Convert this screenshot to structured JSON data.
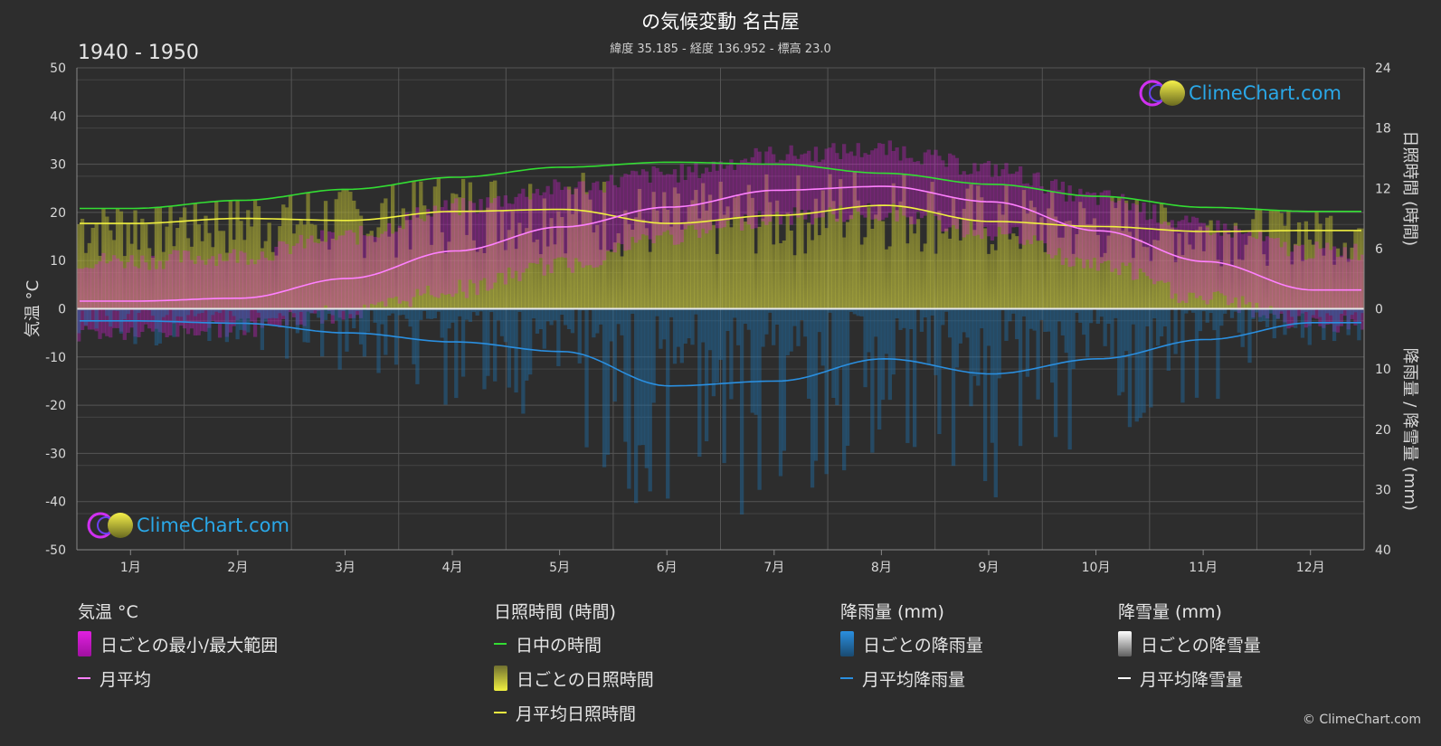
{
  "header": {
    "title": "の気候変動 名古屋",
    "subtitle": "緯度 35.185 - 経度 136.952 - 標高 23.0",
    "period": "1940 - 1950"
  },
  "brand": {
    "logo_text": "ClimeChart.com",
    "copyright": "© ClimeChart.com"
  },
  "colors": {
    "background": "#2d2d2d",
    "daylight": "#33dd33",
    "sunshine_avg": "#f0f040",
    "temp_avg": "#ff80ff",
    "rain_avg": "#2a8fe0",
    "temp_range": "#e020e0",
    "sunshine_bar": "#b9b93a",
    "rain_bar": "#1f6fa8",
    "logo": "#2aa8e8"
  },
  "chart_data": {
    "type": "line",
    "x_label_suffix": "月",
    "categories": [
      "1月",
      "2月",
      "3月",
      "4月",
      "5月",
      "6月",
      "7月",
      "8月",
      "9月",
      "10月",
      "11月",
      "12月"
    ],
    "axes": {
      "left": {
        "title": "気温 °C",
        "min": -50,
        "max": 50,
        "ticks": [
          50,
          40,
          30,
          20,
          10,
          0,
          -10,
          -20,
          -30,
          -40,
          -50
        ]
      },
      "right_top": {
        "title": "日照時間 (時間)",
        "min": 0,
        "max": 24,
        "ticks": [
          24,
          18,
          12,
          6,
          0
        ]
      },
      "right_bottom": {
        "title": "降雨量 / 降雪量 (mm)",
        "min": 0,
        "max": 40,
        "ticks": [
          10,
          20,
          30,
          40
        ]
      }
    },
    "series": [
      {
        "name": "日中の時間",
        "axis": "hours",
        "values": [
          10.0,
          10.8,
          11.9,
          13.1,
          14.1,
          14.6,
          14.4,
          13.5,
          12.4,
          11.2,
          10.1,
          9.7
        ]
      },
      {
        "name": "月平均日照時間",
        "axis": "hours",
        "values": [
          8.5,
          9.0,
          8.8,
          9.7,
          9.9,
          8.5,
          9.3,
          10.3,
          8.7,
          8.2,
          7.7,
          7.8
        ]
      },
      {
        "name": "月平均",
        "axis": "temp",
        "values": [
          1.6,
          2.2,
          6.3,
          12.0,
          17.0,
          21.1,
          24.6,
          25.4,
          22.2,
          16.2,
          9.8,
          3.9
        ]
      },
      {
        "name": "月平均降雨量",
        "axis": "rain_mm",
        "values": [
          2.0,
          2.4,
          4.0,
          5.5,
          7.1,
          12.8,
          12.0,
          8.3,
          10.8,
          8.3,
          5.1,
          2.3
        ]
      },
      {
        "name": "月平均降雪量",
        "axis": "rain_mm",
        "values": [
          0,
          0,
          0,
          0,
          0,
          0,
          0,
          0,
          0,
          0,
          0,
          0
        ]
      }
    ],
    "daily_temp_range": {
      "min": [
        -3,
        -2,
        1,
        6,
        11,
        17,
        21,
        22,
        18,
        11,
        4,
        -1
      ],
      "max": [
        8,
        9,
        13,
        19,
        23,
        26,
        30,
        31,
        27,
        21,
        15,
        10
      ]
    },
    "grid": true
  },
  "legend": {
    "groups": [
      {
        "title": "気温 °C",
        "items": [
          {
            "label": "日ごとの最小/最大範囲",
            "kind": "box",
            "color": "#e020e0"
          },
          {
            "label": "月平均",
            "kind": "line",
            "color": "#ff80ff"
          }
        ]
      },
      {
        "title": "日照時間 (時間)",
        "items": [
          {
            "label": "日中の時間",
            "kind": "line",
            "color": "#33dd33"
          },
          {
            "label": "日ごとの日照時間",
            "kind": "box",
            "color": "#d6d640"
          },
          {
            "label": "月平均日照時間",
            "kind": "line",
            "color": "#f0f040"
          }
        ]
      },
      {
        "title": "降雨量 (mm)",
        "items": [
          {
            "label": "日ごとの降雨量",
            "kind": "box",
            "color": "#2a8fe0"
          },
          {
            "label": "月平均降雨量",
            "kind": "line",
            "color": "#2a8fe0"
          }
        ]
      },
      {
        "title": "降雪量 (mm)",
        "items": [
          {
            "label": "日ごとの降雪量",
            "kind": "box",
            "color": "#e8e8e8"
          },
          {
            "label": "月平均降雪量",
            "kind": "line",
            "color": "#ffffff"
          }
        ]
      }
    ]
  }
}
